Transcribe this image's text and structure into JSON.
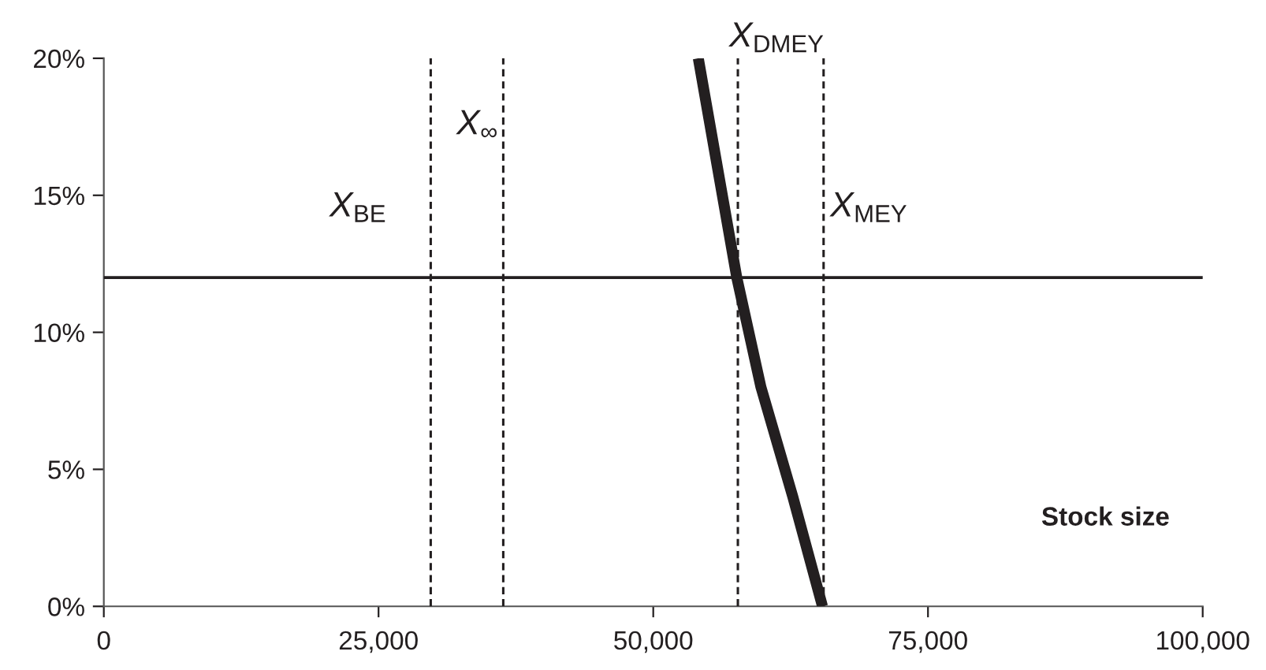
{
  "chart_data": {
    "type": "line",
    "xlabel": "Stock size",
    "series": [
      {
        "color": "#231f20",
        "x": [
          54100,
          57600,
          59800,
          62700,
          65400
        ],
        "values": [
          20,
          12,
          8,
          4,
          0
        ]
      }
    ],
    "xlim": [
      0,
      100000
    ],
    "ylim": [
      0,
      20
    ],
    "xticks": [
      {
        "value": 0,
        "label": "0"
      },
      {
        "value": 25000,
        "label": "25,000"
      },
      {
        "value": 50000,
        "label": "50,000"
      },
      {
        "value": 75000,
        "label": "75,000"
      },
      {
        "value": 100000,
        "label": "100,000"
      }
    ],
    "yticks": [
      {
        "value": 0,
        "label": "0%"
      },
      {
        "value": 5,
        "label": "5%"
      },
      {
        "value": 10,
        "label": "10%"
      },
      {
        "value": 15,
        "label": "15%"
      },
      {
        "value": 20,
        "label": "20%"
      }
    ],
    "ref_lines": [
      {
        "axis": "y",
        "value": 12,
        "line_style": "solid",
        "color": "#231f20"
      },
      {
        "axis": "x",
        "value": 29750,
        "line_style": "dashed",
        "color": "#231f20",
        "label": "X$_{BE}$"
      },
      {
        "axis": "x",
        "value": 36350,
        "line_style": "dashed",
        "color": "#231f20",
        "label": "X$_{∞}$"
      },
      {
        "axis": "x",
        "value": 57700,
        "line_style": "dashed",
        "color": "#231f20",
        "label": "X$_{DMEY}$"
      },
      {
        "axis": "x",
        "value": 65500,
        "line_style": "dashed",
        "color": "#231f20",
        "label": "X$_{MEY}$"
      }
    ],
    "grid": false
  }
}
